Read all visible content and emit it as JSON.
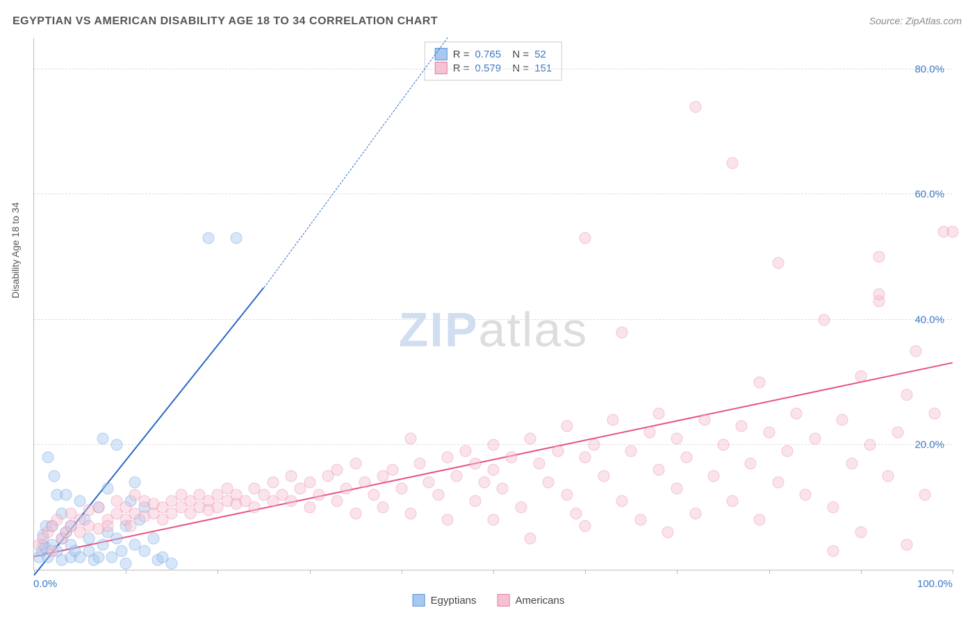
{
  "title": "EGYPTIAN VS AMERICAN DISABILITY AGE 18 TO 34 CORRELATION CHART",
  "source": "Source: ZipAtlas.com",
  "ylabel": "Disability Age 18 to 34",
  "watermark_zip": "ZIP",
  "watermark_atlas": "atlas",
  "chart": {
    "type": "scatter",
    "xlim": [
      0,
      100
    ],
    "ylim": [
      0,
      85
    ],
    "xticks": [
      0,
      10,
      20,
      30,
      40,
      50,
      60,
      70,
      80,
      90,
      100
    ],
    "xticks_labeled": {
      "0": "0.0%",
      "100": "100.0%"
    },
    "yticks": [
      20,
      40,
      60,
      80
    ],
    "yticks_labels": [
      "20.0%",
      "40.0%",
      "60.0%",
      "80.0%"
    ],
    "background_color": "#ffffff",
    "grid_color": "#dddddd",
    "axis_color": "#bbbbbb",
    "axis_label_color": "#3b78c4",
    "marker_size": 17,
    "marker_opacity": 0.45,
    "series": [
      {
        "name": "Egyptians",
        "color_fill": "#a8c8f0",
        "color_border": "#5b93d6",
        "trend_color": "#2a68c8",
        "trend_dash_color": "#2a68c8",
        "r": "0.765",
        "n": "52",
        "trend": {
          "x1": 0,
          "y1": -1,
          "x2": 25,
          "y2": 45,
          "x2_dash": 45,
          "y2_dash": 85
        },
        "points": [
          [
            0.5,
            2
          ],
          [
            0.8,
            3
          ],
          [
            1,
            4
          ],
          [
            1,
            5.5
          ],
          [
            1.2,
            3.5
          ],
          [
            1.3,
            7
          ],
          [
            1.5,
            2
          ],
          [
            1.5,
            18
          ],
          [
            2,
            4
          ],
          [
            2,
            7
          ],
          [
            2.2,
            15
          ],
          [
            2.5,
            3
          ],
          [
            2.5,
            12
          ],
          [
            3,
            1.5
          ],
          [
            3,
            5
          ],
          [
            3,
            9
          ],
          [
            3.5,
            12
          ],
          [
            3.5,
            6
          ],
          [
            4,
            4
          ],
          [
            4,
            2
          ],
          [
            4,
            7
          ],
          [
            4.5,
            3
          ],
          [
            5,
            2
          ],
          [
            5,
            11
          ],
          [
            5.5,
            8
          ],
          [
            6,
            3
          ],
          [
            6,
            5
          ],
          [
            6.5,
            1.5
          ],
          [
            7,
            2
          ],
          [
            7,
            10
          ],
          [
            7.5,
            4
          ],
          [
            7.5,
            21
          ],
          [
            8,
            6
          ],
          [
            8,
            13
          ],
          [
            8.5,
            2
          ],
          [
            9,
            20
          ],
          [
            9,
            5
          ],
          [
            9.5,
            3
          ],
          [
            10,
            1
          ],
          [
            10,
            7
          ],
          [
            10.5,
            11
          ],
          [
            11,
            14
          ],
          [
            11,
            4
          ],
          [
            11.5,
            8
          ],
          [
            12,
            10
          ],
          [
            12,
            3
          ],
          [
            13,
            5
          ],
          [
            13.5,
            1.5
          ],
          [
            14,
            2
          ],
          [
            15,
            1
          ],
          [
            19,
            53
          ],
          [
            22,
            53
          ]
        ]
      },
      {
        "name": "Americans",
        "color_fill": "#f6c2d2",
        "color_border": "#e77da0",
        "trend_color": "#e8517e",
        "r": "0.579",
        "n": "151",
        "trend": {
          "x1": 0,
          "y1": 2,
          "x2": 100,
          "y2": 33
        },
        "points": [
          [
            0.5,
            4
          ],
          [
            1,
            5
          ],
          [
            1.5,
            6
          ],
          [
            2,
            3
          ],
          [
            2,
            7
          ],
          [
            2.5,
            8
          ],
          [
            3,
            5
          ],
          [
            3.5,
            6
          ],
          [
            4,
            7
          ],
          [
            4,
            9
          ],
          [
            5,
            6
          ],
          [
            5,
            8
          ],
          [
            6,
            7
          ],
          [
            6,
            9.5
          ],
          [
            7,
            6.5
          ],
          [
            7,
            10
          ],
          [
            8,
            8
          ],
          [
            8,
            7
          ],
          [
            9,
            9
          ],
          [
            9,
            11
          ],
          [
            10,
            8
          ],
          [
            10,
            10
          ],
          [
            10.5,
            7
          ],
          [
            11,
            9
          ],
          [
            11,
            12
          ],
          [
            12,
            8.5
          ],
          [
            12,
            11
          ],
          [
            13,
            9
          ],
          [
            13,
            10.5
          ],
          [
            14,
            10
          ],
          [
            14,
            8
          ],
          [
            15,
            11
          ],
          [
            15,
            9
          ],
          [
            16,
            10
          ],
          [
            16,
            12
          ],
          [
            17,
            9
          ],
          [
            17,
            11
          ],
          [
            18,
            10
          ],
          [
            18,
            12
          ],
          [
            19,
            11
          ],
          [
            19,
            9.5
          ],
          [
            20,
            12
          ],
          [
            20,
            10
          ],
          [
            21,
            11
          ],
          [
            21,
            13
          ],
          [
            22,
            10.5
          ],
          [
            22,
            12
          ],
          [
            23,
            11
          ],
          [
            24,
            13
          ],
          [
            24,
            10
          ],
          [
            25,
            12
          ],
          [
            26,
            11
          ],
          [
            26,
            14
          ],
          [
            27,
            12
          ],
          [
            28,
            11
          ],
          [
            28,
            15
          ],
          [
            29,
            13
          ],
          [
            30,
            14
          ],
          [
            30,
            10
          ],
          [
            31,
            12
          ],
          [
            32,
            15
          ],
          [
            33,
            11
          ],
          [
            33,
            16
          ],
          [
            34,
            13
          ],
          [
            35,
            9
          ],
          [
            35,
            17
          ],
          [
            36,
            14
          ],
          [
            37,
            12
          ],
          [
            38,
            15
          ],
          [
            38,
            10
          ],
          [
            39,
            16
          ],
          [
            40,
            13
          ],
          [
            41,
            9
          ],
          [
            41,
            21
          ],
          [
            42,
            17
          ],
          [
            43,
            14
          ],
          [
            44,
            12
          ],
          [
            45,
            18
          ],
          [
            45,
            8
          ],
          [
            46,
            15
          ],
          [
            47,
            19
          ],
          [
            48,
            11
          ],
          [
            48,
            17
          ],
          [
            49,
            14
          ],
          [
            50,
            16
          ],
          [
            50,
            8
          ],
          [
            50,
            20
          ],
          [
            51,
            13
          ],
          [
            52,
            18
          ],
          [
            53,
            10
          ],
          [
            54,
            21
          ],
          [
            54,
            5
          ],
          [
            55,
            17
          ],
          [
            56,
            14
          ],
          [
            57,
            19
          ],
          [
            58,
            12
          ],
          [
            58,
            23
          ],
          [
            59,
            9
          ],
          [
            60,
            18
          ],
          [
            60,
            7
          ],
          [
            60,
            53
          ],
          [
            61,
            20
          ],
          [
            62,
            15
          ],
          [
            63,
            24
          ],
          [
            64,
            11
          ],
          [
            64,
            38
          ],
          [
            65,
            19
          ],
          [
            66,
            8
          ],
          [
            67,
            22
          ],
          [
            68,
            16
          ],
          [
            68,
            25
          ],
          [
            69,
            6
          ],
          [
            70,
            21
          ],
          [
            70,
            13
          ],
          [
            71,
            18
          ],
          [
            72,
            9
          ],
          [
            72,
            74
          ],
          [
            73,
            24
          ],
          [
            74,
            15
          ],
          [
            75,
            20
          ],
          [
            76,
            11
          ],
          [
            76,
            65
          ],
          [
            77,
            23
          ],
          [
            78,
            17
          ],
          [
            79,
            8
          ],
          [
            79,
            30
          ],
          [
            80,
            22
          ],
          [
            81,
            14
          ],
          [
            81,
            49
          ],
          [
            82,
            19
          ],
          [
            83,
            25
          ],
          [
            84,
            12
          ],
          [
            85,
            21
          ],
          [
            86,
            40
          ],
          [
            87,
            10
          ],
          [
            87,
            3
          ],
          [
            88,
            24
          ],
          [
            89,
            17
          ],
          [
            90,
            31
          ],
          [
            90,
            6
          ],
          [
            91,
            20
          ],
          [
            92,
            50
          ],
          [
            92,
            43
          ],
          [
            92,
            44
          ],
          [
            93,
            15
          ],
          [
            94,
            22
          ],
          [
            95,
            4
          ],
          [
            95,
            28
          ],
          [
            96,
            35
          ],
          [
            97,
            12
          ],
          [
            98,
            25
          ],
          [
            99,
            54
          ],
          [
            100,
            54
          ]
        ]
      }
    ]
  },
  "bottom_legend": {
    "items": [
      "Egyptians",
      "Americans"
    ]
  }
}
